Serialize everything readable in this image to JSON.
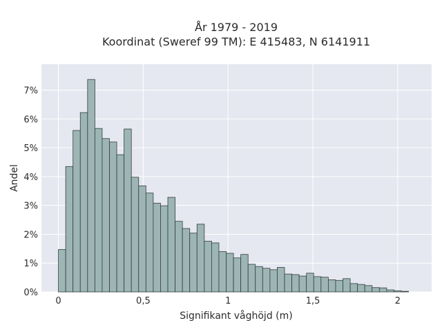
{
  "chart_data": {
    "type": "bar",
    "title": "År 1979 - 2019",
    "subtitle": "Koordinat (Sweref 99 TM): E 415483, N 6141911",
    "xlabel": "Signifikant våghöjd (m)",
    "ylabel": "Andel",
    "xlim": [
      -0.1,
      2.2
    ],
    "ylim": [
      0,
      7.9
    ],
    "x_ticks": [
      0,
      0.5,
      1,
      1.5,
      2
    ],
    "x_tick_labels": [
      "0",
      "0,5",
      "1",
      "1,5",
      "2"
    ],
    "y_ticks": [
      0,
      1,
      2,
      3,
      4,
      5,
      6,
      7
    ],
    "y_tick_labels": [
      "0%",
      "1%",
      "2%",
      "3%",
      "4%",
      "5%",
      "6%",
      "7%"
    ],
    "grid": true,
    "bin_width": 0.043,
    "bin_starts": [
      0.0,
      0.043,
      0.086,
      0.129,
      0.172,
      0.215,
      0.258,
      0.301,
      0.344,
      0.387,
      0.43,
      0.473,
      0.516,
      0.559,
      0.602,
      0.645,
      0.688,
      0.731,
      0.774,
      0.817,
      0.86,
      0.903,
      0.946,
      0.989,
      1.032,
      1.075,
      1.118,
      1.161,
      1.204,
      1.247,
      1.29,
      1.333,
      1.376,
      1.419,
      1.462,
      1.505,
      1.548,
      1.591,
      1.634,
      1.677,
      1.72,
      1.763,
      1.806,
      1.849,
      1.892,
      1.935,
      1.978,
      2.021
    ],
    "values": [
      1.47,
      4.35,
      5.6,
      6.22,
      7.37,
      5.67,
      5.32,
      5.2,
      4.76,
      5.65,
      3.98,
      3.68,
      3.43,
      3.08,
      2.99,
      3.28,
      2.45,
      2.2,
      2.04,
      2.35,
      1.76,
      1.7,
      1.4,
      1.34,
      1.18,
      1.3,
      0.96,
      0.88,
      0.82,
      0.77,
      0.85,
      0.62,
      0.6,
      0.55,
      0.65,
      0.53,
      0.51,
      0.42,
      0.4,
      0.46,
      0.29,
      0.26,
      0.22,
      0.15,
      0.14,
      0.07,
      0.04,
      0.02
    ],
    "colors": {
      "plot_bg": "#e5e8f0",
      "grid": "#ffffff",
      "bar_fill": "#9db5b5",
      "bar_stroke": "#333d3d",
      "text": "#2a2a2a"
    }
  }
}
